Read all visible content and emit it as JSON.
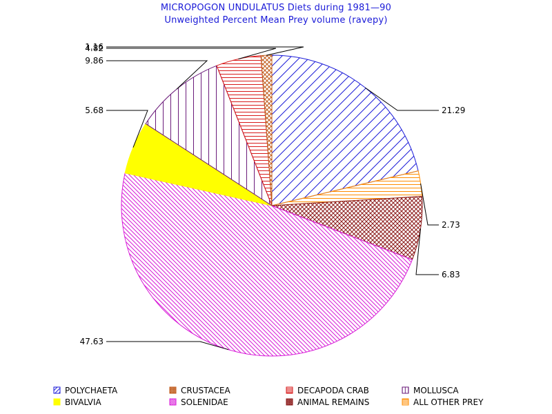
{
  "chart_data": {
    "type": "pie",
    "title": "MICROPOGON UNDULATUS Diets during 1981—90",
    "subtitle": "Unweighted Percent Mean Prey volume (ravepy)",
    "start_angle_deg": 90,
    "direction": "clockwise",
    "slices": [
      {
        "name": "POLYCHAETA",
        "value": 21.29,
        "label": "21.29",
        "color": "#1a1ad8",
        "fill": "hatch-diag-right"
      },
      {
        "name": "ALL OTHER PREY",
        "value": 2.73,
        "label": "2.73",
        "color": "#ff8c00",
        "fill": "hatch-horizontal"
      },
      {
        "name": "ANIMAL REMAINS",
        "value": 6.83,
        "label": "6.83",
        "color": "#8b1a1a",
        "fill": "cross-hatch"
      },
      {
        "name": "SOLENIDAE",
        "value": 47.63,
        "label": "47.63",
        "color": "#d81ad8",
        "fill": "hatch-diag-dense"
      },
      {
        "name": "BIVALVIA",
        "value": 5.68,
        "label": "5.68",
        "color": "#ffff00",
        "fill": "solid"
      },
      {
        "name": "MOLLUSCA",
        "value": 9.86,
        "label": "9.86",
        "color": "#6a1a7a",
        "fill": "hatch-vertical"
      },
      {
        "name": "DECAPODA CRAB",
        "value": 4.82,
        "label": "4.82",
        "color": "#d81a1a",
        "fill": "hatch-horizontal"
      },
      {
        "name": "CRUSTACEA",
        "value": 1.16,
        "label": "1.16",
        "color": "#c05a1a",
        "fill": "cross-hatch"
      }
    ],
    "legend": {
      "placement": "bottom",
      "items": [
        "POLYCHAETA",
        "CRUSTACEA",
        "DECAPODA CRAB",
        "MOLLUSCA",
        "BIVALVIA",
        "SOLENIDAE",
        "ANIMAL REMAINS",
        "ALL OTHER PREY"
      ]
    }
  }
}
